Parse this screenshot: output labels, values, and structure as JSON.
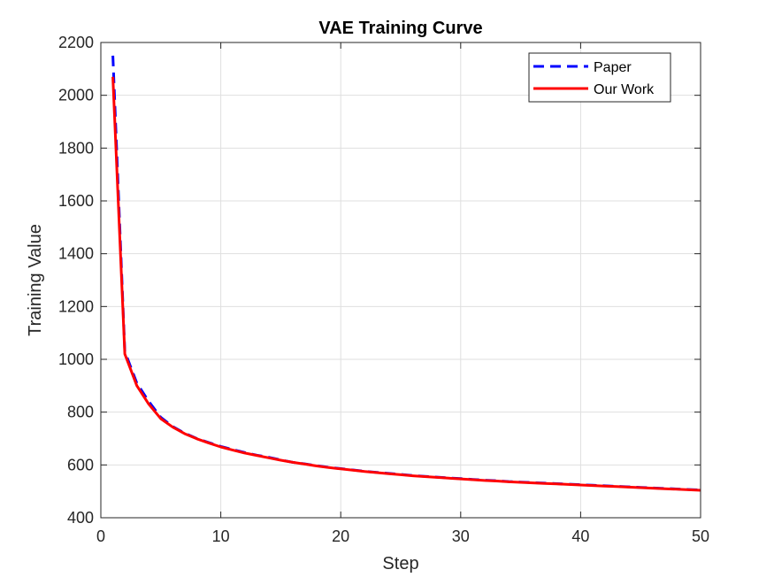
{
  "chart_data": {
    "type": "line",
    "title": "VAE Training Curve",
    "xlabel": "Step",
    "ylabel": "Training Value",
    "xlim": [
      0,
      50
    ],
    "ylim": [
      400,
      2200
    ],
    "xticks": [
      0,
      10,
      20,
      30,
      40,
      50
    ],
    "yticks": [
      400,
      600,
      800,
      1000,
      1200,
      1400,
      1600,
      1800,
      2000,
      2200
    ],
    "grid": true,
    "legend_position": "top-right",
    "x": [
      1,
      2,
      3,
      4,
      5,
      6,
      7,
      8,
      9,
      10,
      11,
      12,
      13,
      14,
      15,
      16,
      17,
      18,
      19,
      20,
      21,
      22,
      23,
      24,
      25,
      26,
      27,
      28,
      29,
      30,
      31,
      32,
      33,
      34,
      35,
      36,
      37,
      38,
      39,
      40,
      41,
      42,
      43,
      44,
      45,
      46,
      47,
      48,
      49,
      50
    ],
    "series": [
      {
        "name": "Paper",
        "color": "#0000ff",
        "style": "dashed",
        "values": [
          2150,
          1030,
          910,
          840,
          780,
          745,
          720,
          700,
          685,
          670,
          658,
          647,
          637,
          629,
          619,
          610,
          604,
          597,
          591,
          586,
          581,
          576,
          572,
          568,
          564,
          560,
          557,
          554,
          551,
          548,
          545,
          542,
          540,
          537,
          535,
          533,
          531,
          529,
          527,
          525,
          523,
          521,
          519,
          517,
          515,
          513,
          511,
          509,
          507,
          505
        ]
      },
      {
        "name": "Our Work",
        "color": "#ff0000",
        "style": "solid",
        "values": [
          2070,
          1020,
          900,
          830,
          775,
          743,
          718,
          699,
          683,
          668,
          656,
          645,
          636,
          627,
          618,
          610,
          603,
          596,
          590,
          585,
          580,
          575,
          571,
          567,
          563,
          559,
          556,
          553,
          550,
          547,
          544,
          541,
          539,
          536,
          534,
          532,
          530,
          528,
          526,
          524,
          522,
          520,
          518,
          516,
          514,
          512,
          510,
          508,
          506,
          504
        ]
      }
    ]
  }
}
